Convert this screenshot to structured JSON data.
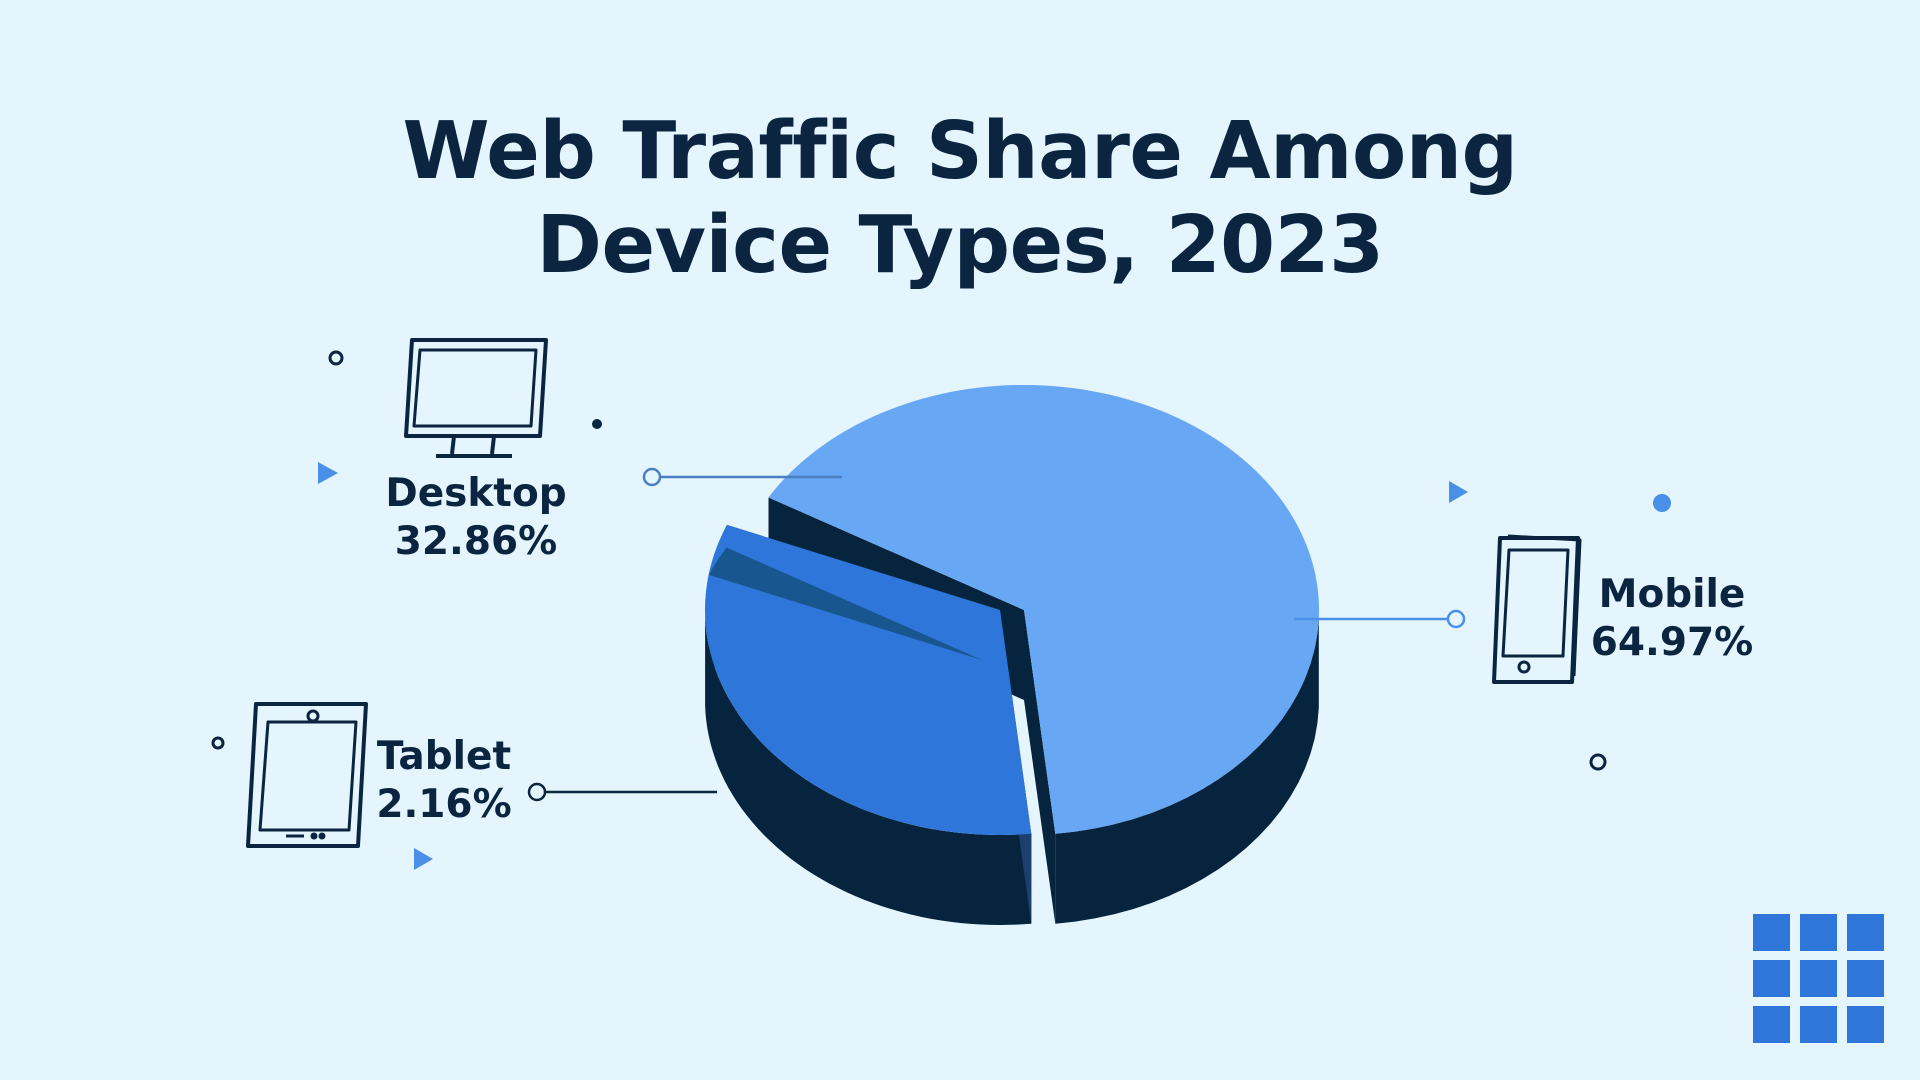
{
  "chart_data": {
    "type": "pie",
    "title_lines": [
      "Web Traffic Share Among",
      "Device Types, 2023"
    ],
    "slices": [
      {
        "name": "Mobile",
        "value": 64.97,
        "value_label": "64.97%",
        "color": "#67a7f3",
        "icon": "smartphone-icon"
      },
      {
        "name": "Desktop",
        "value": 32.86,
        "value_label": "32.86%",
        "color": "#2e76d9",
        "icon": "desktop-monitor-icon"
      },
      {
        "name": "Tablet",
        "value": 2.16,
        "value_label": "2.16%",
        "color": "#17568f",
        "icon": "tablet-icon"
      }
    ],
    "side_color": "#07243e",
    "desktop_side_color": "#1c3f6d"
  },
  "brand": {
    "logo_icon": "grid-logo-icon",
    "color": "#2e76d9"
  }
}
